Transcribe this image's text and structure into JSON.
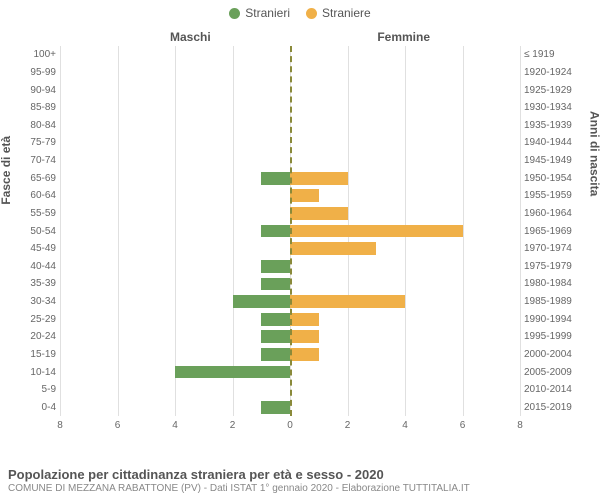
{
  "legend": {
    "male": {
      "label": "Stranieri",
      "color": "#6aa05a"
    },
    "female": {
      "label": "Straniere",
      "color": "#f0b048"
    }
  },
  "sideTitles": {
    "left": "Maschi",
    "right": "Femmine"
  },
  "axisLabels": {
    "left": "Fasce di età",
    "right": "Anni di nascita"
  },
  "chart": {
    "type": "population-pyramid",
    "xMax": 8,
    "xTicks": [
      8,
      6,
      4,
      2,
      0,
      2,
      4,
      6,
      8
    ],
    "gridColor": "#e0e0e0",
    "centerLineColor": "#8a8a3a",
    "background": "#ffffff",
    "maleColor": "#6aa05a",
    "femaleColor": "#f0b048",
    "tickFontSize": 10,
    "rows": [
      {
        "age": "100+",
        "birth": "≤ 1919",
        "male": 0,
        "female": 0
      },
      {
        "age": "95-99",
        "birth": "1920-1924",
        "male": 0,
        "female": 0
      },
      {
        "age": "90-94",
        "birth": "1925-1929",
        "male": 0,
        "female": 0
      },
      {
        "age": "85-89",
        "birth": "1930-1934",
        "male": 0,
        "female": 0
      },
      {
        "age": "80-84",
        "birth": "1935-1939",
        "male": 0,
        "female": 0
      },
      {
        "age": "75-79",
        "birth": "1940-1944",
        "male": 0,
        "female": 0
      },
      {
        "age": "70-74",
        "birth": "1945-1949",
        "male": 0,
        "female": 0
      },
      {
        "age": "65-69",
        "birth": "1950-1954",
        "male": 1,
        "female": 2
      },
      {
        "age": "60-64",
        "birth": "1955-1959",
        "male": 0,
        "female": 1
      },
      {
        "age": "55-59",
        "birth": "1960-1964",
        "male": 0,
        "female": 2
      },
      {
        "age": "50-54",
        "birth": "1965-1969",
        "male": 1,
        "female": 6
      },
      {
        "age": "45-49",
        "birth": "1970-1974",
        "male": 0,
        "female": 3
      },
      {
        "age": "40-44",
        "birth": "1975-1979",
        "male": 1,
        "female": 0
      },
      {
        "age": "35-39",
        "birth": "1980-1984",
        "male": 1,
        "female": 0
      },
      {
        "age": "30-34",
        "birth": "1985-1989",
        "male": 2,
        "female": 4
      },
      {
        "age": "25-29",
        "birth": "1990-1994",
        "male": 1,
        "female": 1
      },
      {
        "age": "20-24",
        "birth": "1995-1999",
        "male": 1,
        "female": 1
      },
      {
        "age": "15-19",
        "birth": "2000-2004",
        "male": 1,
        "female": 1
      },
      {
        "age": "10-14",
        "birth": "2005-2009",
        "male": 4,
        "female": 0
      },
      {
        "age": "5-9",
        "birth": "2010-2014",
        "male": 0,
        "female": 0
      },
      {
        "age": "0-4",
        "birth": "2015-2019",
        "male": 1,
        "female": 0
      }
    ]
  },
  "footer": {
    "title": "Popolazione per cittadinanza straniera per età e sesso - 2020",
    "subtitle": "COMUNE DI MEZZANA RABATTONE (PV) - Dati ISTAT 1° gennaio 2020 - Elaborazione TUTTITALIA.IT"
  }
}
